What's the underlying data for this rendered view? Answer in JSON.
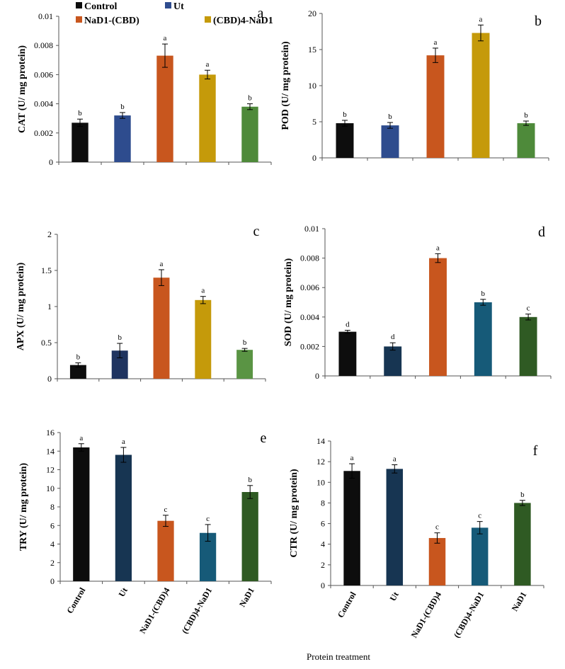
{
  "figure": {
    "xlabel": "Protein treatment",
    "legend": [
      {
        "label": "Control",
        "color": "#0d0d0d"
      },
      {
        "label": "Ut",
        "color": "#2e4c8e"
      },
      {
        "label": "NaD1-(CBD)",
        "color": "#c8561e"
      },
      {
        "label": "(CBD)4-NaD1",
        "color": "#c59a0a"
      }
    ],
    "category_labels": [
      "Control",
      "Ut",
      "NaD1-(CBD)4",
      "(CBD)4-NaD1",
      "NaD1"
    ]
  },
  "chart_data": [
    {
      "type": "bar",
      "panel": "a",
      "ylabel": "CAT (U/ mg protein)",
      "categories": [
        "Control",
        "Ut",
        "NaD1-(CBD)",
        "(CBD)4-NaD1",
        "NaD1"
      ],
      "values": [
        0.0027,
        0.0032,
        0.0073,
        0.006,
        0.0038
      ],
      "errors": [
        0.00025,
        0.0002,
        0.0008,
        0.0003,
        0.0002
      ],
      "letters": [
        "b",
        "b",
        "a",
        "a",
        "b"
      ],
      "ylim": [
        0,
        0.01
      ],
      "yticks": [
        "0",
        "0.002",
        "0.004",
        "0.006",
        "0.008",
        "0.01"
      ],
      "colors": [
        "#0d0d0d",
        "#2e4c8e",
        "#c8561e",
        "#c59a0a",
        "#4e8a3a"
      ],
      "show_xlabels": false
    },
    {
      "type": "bar",
      "panel": "b",
      "ylabel": "POD (U/ mg protein)",
      "categories": [
        "Control",
        "Ut",
        "NaD1-(CBD)",
        "(CBD)4-NaD1",
        "NaD1"
      ],
      "values": [
        4.8,
        4.5,
        14.2,
        17.3,
        4.8
      ],
      "errors": [
        0.4,
        0.4,
        1.0,
        1.1,
        0.3
      ],
      "letters": [
        "b",
        "b",
        "a",
        "a",
        "b"
      ],
      "ylim": [
        0,
        20
      ],
      "yticks": [
        "0",
        "5",
        "10",
        "15",
        "20"
      ],
      "colors": [
        "#0d0d0d",
        "#2e4c8e",
        "#c8561e",
        "#c59a0a",
        "#4e8a3a"
      ],
      "show_xlabels": false
    },
    {
      "type": "bar",
      "panel": "c",
      "ylabel": "APX (U/ mg protein)",
      "categories": [
        "Control",
        "Ut",
        "NaD1-(CBD)",
        "(CBD)4-NaD1",
        "NaD1"
      ],
      "values": [
        0.19,
        0.39,
        1.4,
        1.09,
        0.4
      ],
      "errors": [
        0.03,
        0.1,
        0.11,
        0.05,
        0.02
      ],
      "letters": [
        "b",
        "b",
        "a",
        "a",
        "b"
      ],
      "ylim": [
        0,
        2
      ],
      "yticks": [
        "0",
        "0.5",
        "1",
        "1.5",
        "2"
      ],
      "colors": [
        "#0d0d0d",
        "#1f3460",
        "#c8561e",
        "#c59a0a",
        "#5a9444"
      ],
      "show_xlabels": false
    },
    {
      "type": "bar",
      "panel": "d",
      "ylabel": "SOD (U/ mg protein)",
      "categories": [
        "Control",
        "Ut",
        "NaD1-(CBD)",
        "(CBD)4-NaD1",
        "NaD1"
      ],
      "values": [
        0.003,
        0.002,
        0.008,
        0.005,
        0.004
      ],
      "errors": [
        0.0001,
        0.00025,
        0.0003,
        0.0002,
        0.0002
      ],
      "letters": [
        "d",
        "d",
        "a",
        "b",
        "c"
      ],
      "ylim": [
        0,
        0.01
      ],
      "yticks": [
        "0",
        "0.002",
        "0.004",
        "0.006",
        "0.008",
        "0.01"
      ],
      "colors": [
        "#0d0d0d",
        "#173552",
        "#c8561e",
        "#165a78",
        "#2f5a23"
      ],
      "show_xlabels": false
    },
    {
      "type": "bar",
      "panel": "e",
      "ylabel": "TRY (U/ mg protein)",
      "categories": [
        "Control",
        "Ut",
        "NaD1-(CBD)4",
        "(CBD)4-NaD1",
        "NaD1"
      ],
      "values": [
        14.4,
        13.6,
        6.5,
        5.2,
        9.6
      ],
      "errors": [
        0.4,
        0.8,
        0.6,
        0.9,
        0.7
      ],
      "letters": [
        "a",
        "a",
        "c",
        "c",
        "b"
      ],
      "ylim": [
        0,
        16
      ],
      "yticks": [
        "0",
        "2",
        "4",
        "6",
        "8",
        "10",
        "12",
        "14",
        "16"
      ],
      "colors": [
        "#0d0d0d",
        "#173552",
        "#c8561e",
        "#165a78",
        "#2f5a23"
      ],
      "show_xlabels": true
    },
    {
      "type": "bar",
      "panel": "f",
      "ylabel": "CTR (U/ mg protein)",
      "categories": [
        "Control",
        "Ut",
        "NaD1-(CBD)4",
        "(CBD)4-NaD1",
        "NaD1"
      ],
      "values": [
        11.1,
        11.3,
        4.6,
        5.6,
        8.0
      ],
      "errors": [
        0.7,
        0.4,
        0.5,
        0.6,
        0.25
      ],
      "letters": [
        "a",
        "a",
        "c",
        "c",
        "b"
      ],
      "ylim": [
        0,
        14
      ],
      "yticks": [
        "0",
        "2",
        "4",
        "6",
        "8",
        "10",
        "12",
        "14"
      ],
      "colors": [
        "#0d0d0d",
        "#173552",
        "#c8561e",
        "#165a78",
        "#2f5a23"
      ],
      "show_xlabels": true
    }
  ]
}
